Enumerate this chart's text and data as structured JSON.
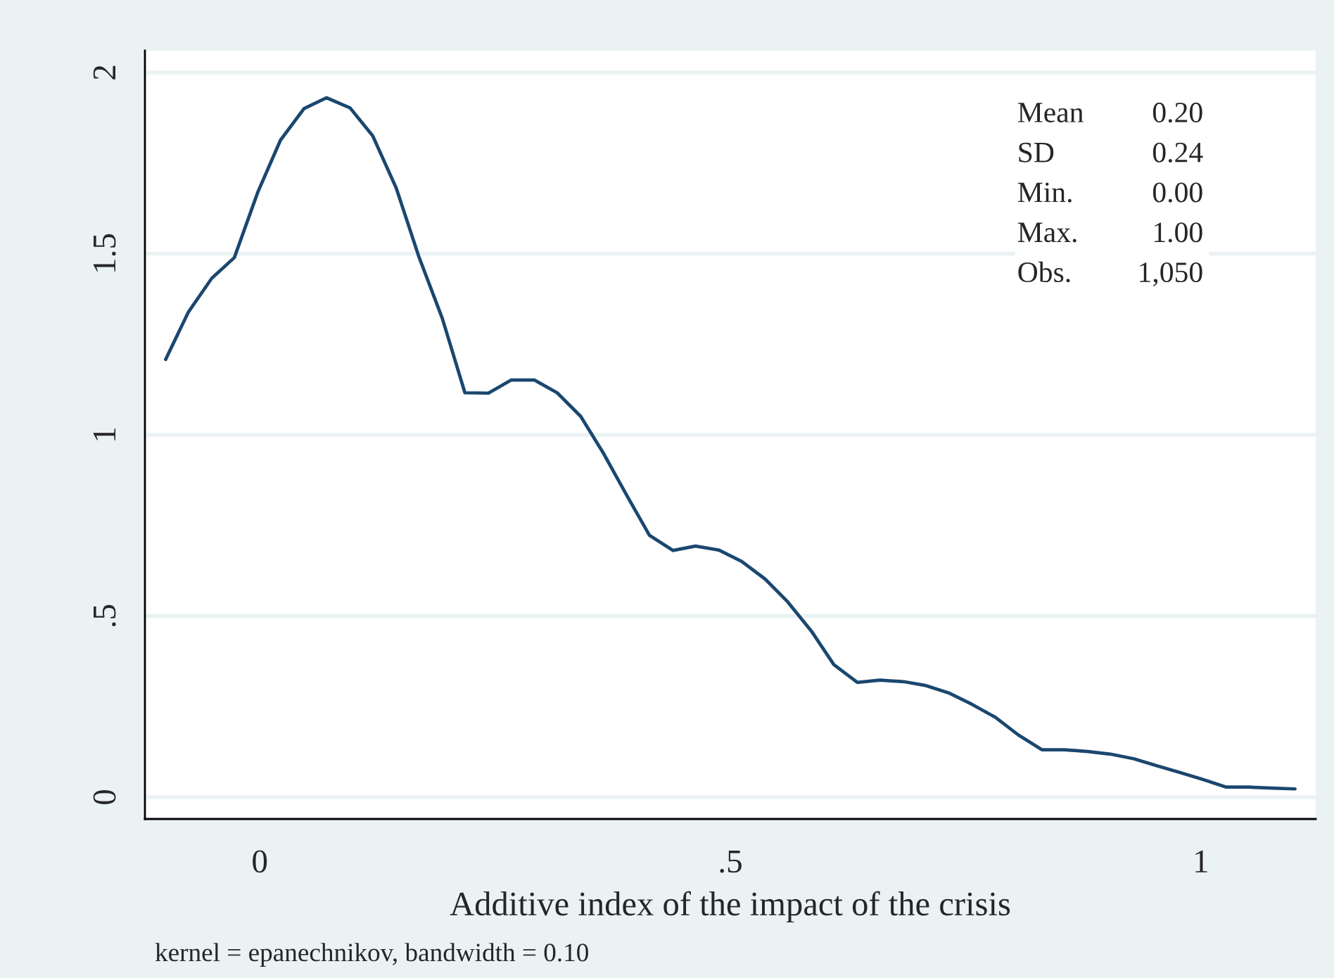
{
  "chart_data": {
    "type": "line",
    "xlabel": "Additive index of the impact of the crisis",
    "annotations": [
      "Mean",
      "0.20",
      "SD",
      "0.24",
      "Min.",
      "0.00",
      "Max.",
      "1.00",
      "Obs.",
      "1,050",
      "kernel = epanechnikov, bandwidth = 0.10"
    ],
    "x": [
      -0.1,
      -0.076,
      -0.051,
      -0.027,
      -0.002,
      0.022,
      0.047,
      0.071,
      0.096,
      0.12,
      0.145,
      0.169,
      0.194,
      0.218,
      0.243,
      0.267,
      0.292,
      0.316,
      0.341,
      0.365,
      0.39,
      0.414,
      0.439,
      0.463,
      0.488,
      0.512,
      0.537,
      0.561,
      0.586,
      0.61,
      0.635,
      0.659,
      0.684,
      0.708,
      0.733,
      0.757,
      0.782,
      0.806,
      0.831,
      0.855,
      0.88,
      0.904,
      0.929,
      0.953,
      0.978,
      1.002,
      1.027,
      1.051,
      1.076,
      1.1
    ],
    "series": [
      {
        "color": "#1a476f",
        "values": [
          1.208,
          1.338,
          1.432,
          1.489,
          1.67,
          1.813,
          1.9,
          1.93,
          1.902,
          1.825,
          1.681,
          1.492,
          1.321,
          1.116,
          1.115,
          1.151,
          1.151,
          1.116,
          1.051,
          0.95,
          0.833,
          0.723,
          0.681,
          0.693,
          0.682,
          0.651,
          0.602,
          0.539,
          0.459,
          0.366,
          0.317,
          0.323,
          0.319,
          0.308,
          0.287,
          0.256,
          0.22,
          0.172,
          0.131,
          0.131,
          0.126,
          0.119,
          0.106,
          0.087,
          0.068,
          0.049,
          0.028,
          0.028,
          0.025,
          0.023
        ]
      }
    ],
    "xlim": [
      -0.122,
      1.122
    ],
    "ylim": [
      -0.06,
      2.06
    ],
    "xticks": [
      0,
      {
        "value": 0.5,
        "label": ".5"
      },
      1
    ],
    "yticks": [
      0,
      {
        "value": 0.5,
        "label": ".5"
      },
      1,
      1.5,
      2
    ],
    "grid": "y"
  }
}
